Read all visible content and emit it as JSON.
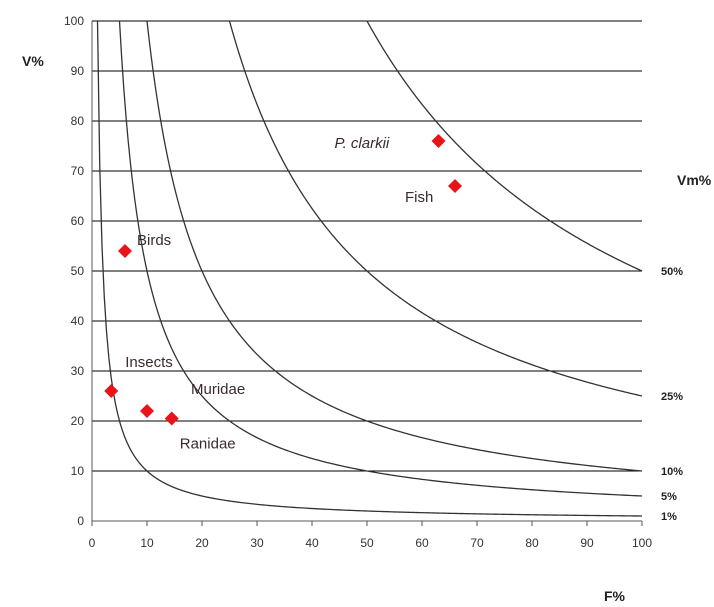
{
  "chart_data": {
    "type": "scatter",
    "xlabel": "F%",
    "ylabel": "V%",
    "curve_label": "Vm%",
    "xlim": [
      0,
      100
    ],
    "ylim": [
      0,
      100
    ],
    "x_ticks": [
      0,
      10,
      20,
      30,
      40,
      50,
      60,
      70,
      80,
      90,
      100
    ],
    "y_ticks": [
      0,
      10,
      20,
      30,
      40,
      50,
      60,
      70,
      80,
      90,
      100
    ],
    "grid": "horizontal",
    "marker_color": "#e8141a",
    "curve_color": "#333333",
    "isolines": [
      {
        "label": "1%",
        "value": 1
      },
      {
        "label": "5%",
        "value": 5
      },
      {
        "label": "10%",
        "value": 10
      },
      {
        "label": "25%",
        "value": 25
      },
      {
        "label": "50%",
        "value": 50
      }
    ],
    "points": [
      {
        "label": "P. clarkii",
        "x": 63,
        "y": 76,
        "italic": true
      },
      {
        "label": "Fish",
        "x": 66,
        "y": 67
      },
      {
        "label": "Birds",
        "x": 6,
        "y": 54
      },
      {
        "label": "Insects",
        "x": 3.5,
        "y": 26
      },
      {
        "label": "Muridae",
        "x": 10,
        "y": 22
      },
      {
        "label": "Ranidae",
        "x": 14.5,
        "y": 20.5
      }
    ]
  }
}
